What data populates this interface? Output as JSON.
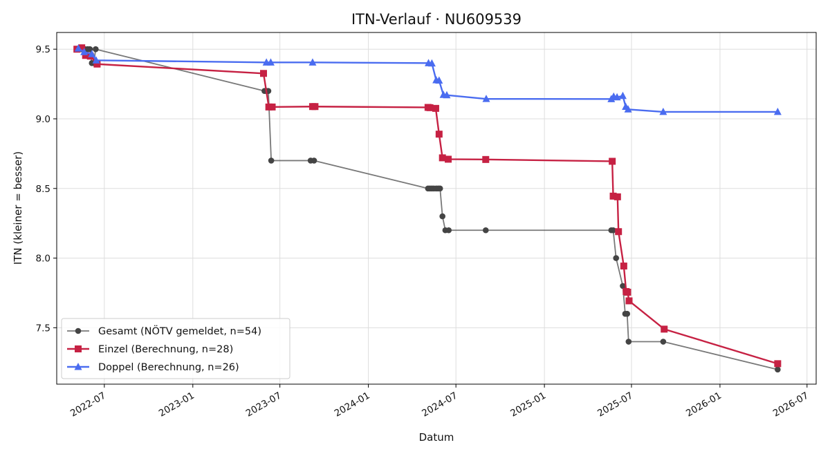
{
  "chart_data": {
    "type": "line",
    "title": "ITN-Verlauf · NU609539",
    "xlabel": "Datum",
    "ylabel": "ITN  (kleiner = besser)",
    "xlim": [
      "2022-03-24",
      "2026-07-20"
    ],
    "ylim": [
      7.095,
      9.62
    ],
    "grid": true,
    "legend_position": "lower-left",
    "x_ticks": [
      "2022-07",
      "2023-01",
      "2023-07",
      "2024-01",
      "2024-07",
      "2025-01",
      "2025-07",
      "2026-01",
      "2026-07"
    ],
    "y_ticks": [
      7.5,
      8.0,
      8.5,
      9.0,
      9.5
    ],
    "series": [
      {
        "name": "Gesamt (NÖTV gemeldet, n=54)",
        "color": "#444444",
        "marker": "circle",
        "points": [
          [
            "2022-05-10",
            9.5
          ],
          [
            "2022-05-14",
            9.5
          ],
          [
            "2022-05-18",
            9.5
          ],
          [
            "2022-05-22",
            9.5
          ],
          [
            "2022-05-27",
            9.5
          ],
          [
            "2022-06-01",
            9.5
          ],
          [
            "2022-06-05",
            9.4
          ],
          [
            "2022-06-09",
            9.4
          ],
          [
            "2022-06-13",
            9.5
          ],
          [
            "2023-05-30",
            9.2
          ],
          [
            "2023-06-03",
            9.2
          ],
          [
            "2023-06-07",
            9.2
          ],
          [
            "2023-06-13",
            8.7
          ],
          [
            "2023-09-03",
            8.7
          ],
          [
            "2023-09-10",
            8.7
          ],
          [
            "2024-05-04",
            8.5
          ],
          [
            "2024-05-08",
            8.5
          ],
          [
            "2024-05-12",
            8.5
          ],
          [
            "2024-05-16",
            8.5
          ],
          [
            "2024-05-21",
            8.5
          ],
          [
            "2024-05-25",
            8.5
          ],
          [
            "2024-05-29",
            8.5
          ],
          [
            "2024-06-03",
            8.3
          ],
          [
            "2024-06-09",
            8.2
          ],
          [
            "2024-06-16",
            8.2
          ],
          [
            "2024-09-01",
            8.2
          ],
          [
            "2025-05-20",
            8.2
          ],
          [
            "2025-05-24",
            8.2
          ],
          [
            "2025-05-30",
            8.0
          ],
          [
            "2025-06-13",
            7.8
          ],
          [
            "2025-06-18",
            7.6
          ],
          [
            "2025-06-22",
            7.6
          ],
          [
            "2025-06-25",
            7.4
          ],
          [
            "2025-09-05",
            7.4
          ],
          [
            "2026-05-01",
            7.2
          ]
        ]
      },
      {
        "name": "Einzel (Berechnung, n=28)",
        "color": "#c62143",
        "marker": "square",
        "points": [
          [
            "2022-05-05",
            9.5
          ],
          [
            "2022-05-15",
            9.51
          ],
          [
            "2022-05-23",
            9.455
          ],
          [
            "2022-06-02",
            9.45
          ],
          [
            "2022-06-16",
            9.393
          ],
          [
            "2023-05-28",
            9.326
          ],
          [
            "2023-06-08",
            9.085
          ],
          [
            "2023-06-15",
            9.085
          ],
          [
            "2023-09-07",
            9.088
          ],
          [
            "2023-09-12",
            9.088
          ],
          [
            "2024-05-04",
            9.082
          ],
          [
            "2024-05-08",
            9.08
          ],
          [
            "2024-05-20",
            9.075
          ],
          [
            "2024-05-27",
            8.89
          ],
          [
            "2024-06-03",
            8.72
          ],
          [
            "2024-06-15",
            8.71
          ],
          [
            "2024-09-01",
            8.708
          ],
          [
            "2025-05-22",
            8.695
          ],
          [
            "2025-05-24",
            8.445
          ],
          [
            "2025-06-02",
            8.44
          ],
          [
            "2025-06-04",
            8.19
          ],
          [
            "2025-06-15",
            7.943
          ],
          [
            "2025-06-20",
            7.76
          ],
          [
            "2025-06-23",
            7.755
          ],
          [
            "2025-06-26",
            7.693
          ],
          [
            "2025-09-07",
            7.49
          ],
          [
            "2026-05-01",
            7.242
          ]
        ]
      },
      {
        "name": "Doppel (Berechnung, n=26)",
        "color": "#4a6cf0",
        "marker": "triangle",
        "points": [
          [
            "2022-05-08",
            9.505
          ],
          [
            "2022-05-20",
            9.48
          ],
          [
            "2022-06-05",
            9.465
          ],
          [
            "2022-06-14",
            9.42
          ],
          [
            "2023-06-03",
            9.405
          ],
          [
            "2023-06-12",
            9.405
          ],
          [
            "2023-09-07",
            9.405
          ],
          [
            "2024-05-05",
            9.4
          ],
          [
            "2024-05-12",
            9.398
          ],
          [
            "2024-05-21",
            9.278
          ],
          [
            "2024-05-27",
            9.275
          ],
          [
            "2024-06-05",
            9.172
          ],
          [
            "2024-06-12",
            9.17
          ],
          [
            "2024-09-02",
            9.143
          ],
          [
            "2025-05-20",
            9.142
          ],
          [
            "2025-05-25",
            9.16
          ],
          [
            "2025-06-01",
            9.155
          ],
          [
            "2025-06-13",
            9.165
          ],
          [
            "2025-06-19",
            9.087
          ],
          [
            "2025-06-24",
            9.068
          ],
          [
            "2025-09-05",
            9.05
          ],
          [
            "2026-05-01",
            9.05
          ]
        ]
      }
    ]
  }
}
